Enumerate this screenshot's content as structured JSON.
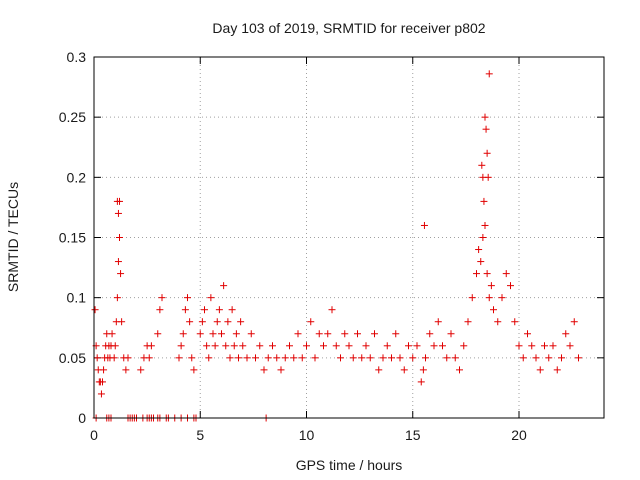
{
  "chart_data": {
    "type": "scatter",
    "title": "Day 103 of 2019, SRMTID for receiver p802",
    "xlabel": "GPS time / hours",
    "ylabel": "SRMTID / TECUs",
    "xlim": [
      0,
      24
    ],
    "ylim": [
      0,
      0.3
    ],
    "x_ticks": [
      0,
      5,
      10,
      15,
      20
    ],
    "x_tick_labels": [
      "0",
      "5",
      "10",
      "15",
      "20"
    ],
    "y_ticks": [
      0,
      0.05,
      0.1,
      0.15,
      0.2,
      0.25,
      0.3
    ],
    "y_tick_labels": [
      "0",
      "0.05",
      "0.1",
      "0.15",
      "0.2",
      "0.25",
      "0.3"
    ],
    "grid": true,
    "marker": "+",
    "color": "#e00000",
    "series": [
      {
        "name": "SRMTID",
        "x": [
          0.05,
          0.1,
          0.15,
          0.2,
          0.25,
          0.3,
          0.35,
          0.4,
          0.45,
          0.5,
          0.55,
          0.6,
          0.65,
          0.7,
          0.75,
          0.8,
          0.85,
          0.95,
          1.0,
          1.05,
          1.1,
          1.15,
          1.2,
          1.25,
          1.3,
          1.4,
          1.5,
          1.6,
          2.2,
          2.35,
          2.5,
          2.6,
          2.7,
          3.0,
          3.1,
          3.2,
          4.0,
          4.1,
          4.2,
          4.3,
          4.4,
          4.5,
          4.6,
          4.7,
          5.0,
          5.1,
          5.2,
          5.3,
          5.4,
          5.5,
          5.6,
          5.7,
          5.8,
          5.9,
          6.0,
          6.1,
          6.2,
          6.3,
          6.4,
          6.5,
          6.6,
          6.7,
          6.8,
          6.9,
          7.0,
          7.2,
          7.4,
          7.6,
          7.8,
          8.0,
          8.2,
          8.4,
          8.6,
          8.8,
          9.0,
          9.2,
          9.4,
          9.6,
          9.8,
          10.0,
          10.2,
          10.4,
          10.6,
          10.8,
          11.0,
          11.2,
          11.4,
          11.6,
          11.8,
          12.0,
          12.2,
          12.4,
          12.6,
          12.8,
          13.0,
          13.2,
          13.4,
          13.6,
          13.8,
          14.0,
          14.2,
          14.4,
          14.6,
          14.8,
          15.0,
          15.2,
          15.4,
          15.5,
          15.6,
          15.8,
          16.0,
          16.2,
          16.4,
          16.6,
          16.8,
          17.0,
          17.2,
          17.4,
          17.6,
          17.8,
          18.0,
          18.1,
          18.2,
          18.3,
          18.4,
          18.5,
          18.6,
          18.7,
          18.8,
          19.0,
          19.2,
          19.4,
          19.6,
          19.8,
          20.0,
          20.2,
          20.4,
          20.6,
          20.8,
          21.0,
          21.2,
          21.4,
          21.6,
          21.8,
          22.0,
          22.2,
          22.4,
          22.6,
          22.8,
          1.1,
          1.15,
          1.2,
          15.55,
          18.3,
          18.4,
          18.45,
          18.5,
          18.55,
          18.6,
          18.35,
          18.25
        ],
        "y": [
          0.09,
          0.06,
          0.05,
          0.04,
          0.03,
          0.03,
          0.02,
          0.03,
          0.04,
          0.05,
          0.06,
          0.07,
          0.05,
          0.06,
          0.05,
          0.06,
          0.07,
          0.05,
          0.06,
          0.08,
          0.1,
          0.13,
          0.15,
          0.12,
          0.08,
          0.05,
          0.04,
          0.05,
          0.04,
          0.05,
          0.06,
          0.05,
          0.06,
          0.07,
          0.09,
          0.1,
          0.05,
          0.06,
          0.07,
          0.09,
          0.1,
          0.08,
          0.05,
          0.04,
          0.07,
          0.08,
          0.09,
          0.06,
          0.05,
          0.1,
          0.07,
          0.06,
          0.08,
          0.09,
          0.07,
          0.11,
          0.06,
          0.08,
          0.05,
          0.09,
          0.06,
          0.07,
          0.05,
          0.08,
          0.06,
          0.05,
          0.07,
          0.05,
          0.06,
          0.04,
          0.05,
          0.06,
          0.05,
          0.04,
          0.05,
          0.06,
          0.05,
          0.07,
          0.05,
          0.06,
          0.08,
          0.05,
          0.07,
          0.06,
          0.07,
          0.09,
          0.06,
          0.05,
          0.07,
          0.06,
          0.05,
          0.07,
          0.05,
          0.06,
          0.05,
          0.07,
          0.04,
          0.05,
          0.06,
          0.05,
          0.07,
          0.05,
          0.04,
          0.06,
          0.05,
          0.06,
          0.03,
          0.04,
          0.05,
          0.07,
          0.06,
          0.08,
          0.06,
          0.05,
          0.07,
          0.05,
          0.04,
          0.06,
          0.08,
          0.1,
          0.12,
          0.14,
          0.13,
          0.15,
          0.16,
          0.12,
          0.1,
          0.11,
          0.09,
          0.08,
          0.1,
          0.12,
          0.11,
          0.08,
          0.06,
          0.05,
          0.07,
          0.06,
          0.05,
          0.04,
          0.06,
          0.05,
          0.06,
          0.04,
          0.05,
          0.07,
          0.06,
          0.08,
          0.05,
          0.18,
          0.17,
          0.18,
          0.16,
          0.2,
          0.25,
          0.24,
          0.22,
          0.2,
          0.286,
          0.18,
          0.21
        ],
        "zero_markers_x": [
          0.1,
          0.6,
          0.7,
          0.8,
          1.6,
          1.7,
          1.8,
          1.9,
          2.0,
          2.3,
          2.5,
          2.6,
          2.7,
          2.8,
          3.0,
          3.1,
          3.4,
          3.5,
          3.8,
          4.1,
          4.4,
          4.7,
          4.8,
          8.1
        ]
      }
    ]
  }
}
